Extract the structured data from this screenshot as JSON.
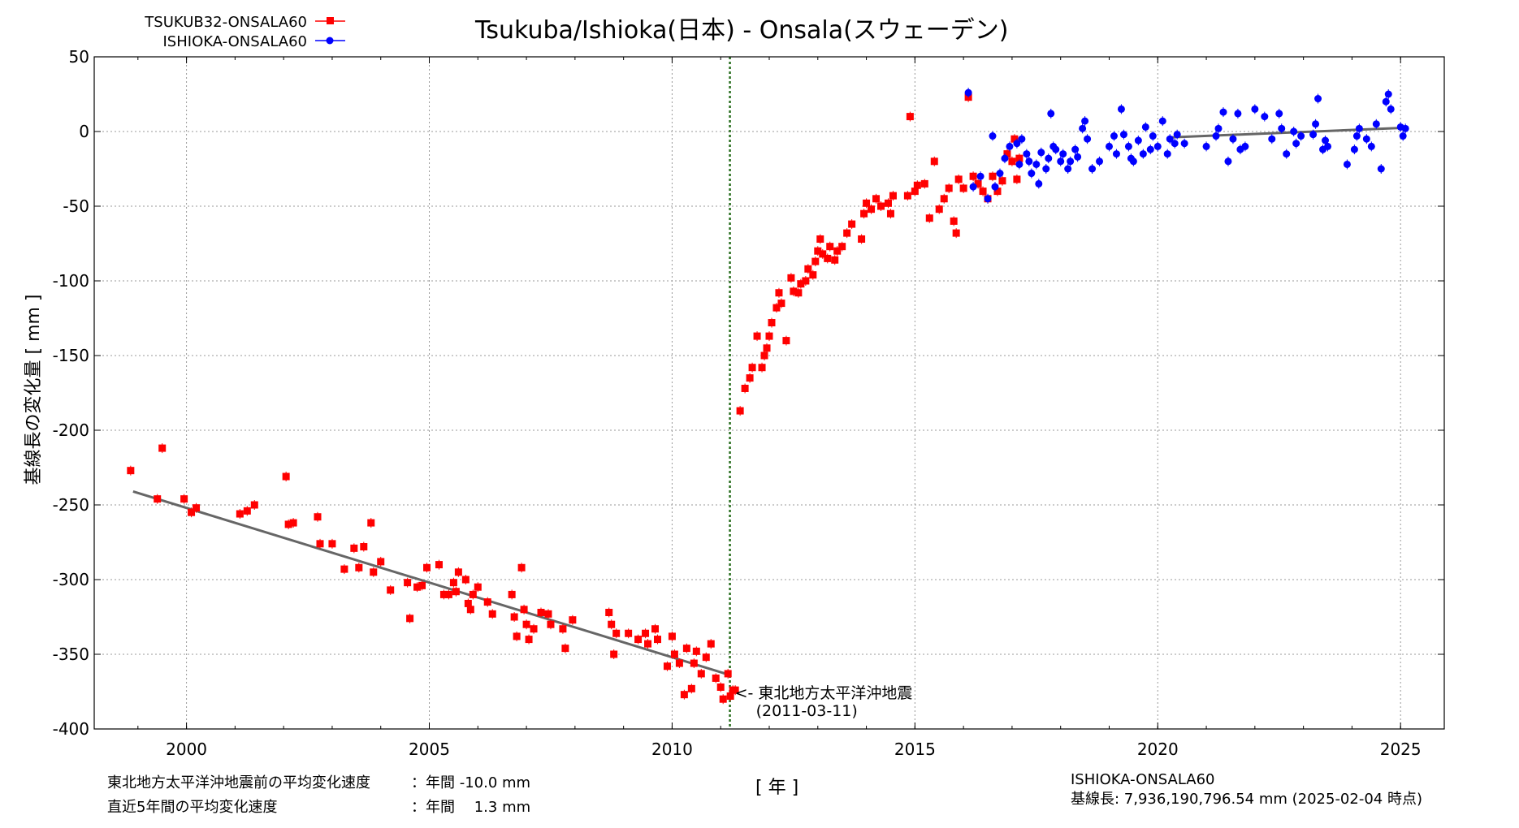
{
  "chart_data": {
    "type": "scatter",
    "title": "Tsukuba/Ishioka(日本) - Onsala(スウェーデン)",
    "xlabel": "[ 年 ]",
    "ylabel": "基線長の変化量 [ mm ]",
    "xlim": [
      1998.1,
      2025.9
    ],
    "ylim": [
      -400,
      50
    ],
    "xticks": [
      "2000",
      "2005",
      "2010",
      "2015",
      "2020",
      "2025"
    ],
    "yticks": [
      "50",
      "0",
      "-50",
      "-100",
      "-150",
      "-200",
      "-250",
      "-300",
      "-350",
      "-400"
    ],
    "grid": true,
    "legend_position": "top-left",
    "colors": {
      "red": "#ff0000",
      "blue": "#0000ff",
      "fit": "#666666",
      "earthquake": "#2a6f1f"
    },
    "series": [
      {
        "name": "TSUKUB32-ONSALA60",
        "marker": "square",
        "color": "#ff0000",
        "points": [
          [
            1998.85,
            -227
          ],
          [
            1999.4,
            -246
          ],
          [
            1999.5,
            -212
          ],
          [
            1999.95,
            -246
          ],
          [
            2000.1,
            -255
          ],
          [
            2000.2,
            -252
          ],
          [
            2001.1,
            -256
          ],
          [
            2001.25,
            -254
          ],
          [
            2001.4,
            -250
          ],
          [
            2002.05,
            -231
          ],
          [
            2002.1,
            -263
          ],
          [
            2002.2,
            -262
          ],
          [
            2002.7,
            -258
          ],
          [
            2002.75,
            -276
          ],
          [
            2003.0,
            -276
          ],
          [
            2003.25,
            -293
          ],
          [
            2003.45,
            -279
          ],
          [
            2003.55,
            -292
          ],
          [
            2003.65,
            -278
          ],
          [
            2003.8,
            -262
          ],
          [
            2003.85,
            -295
          ],
          [
            2004.0,
            -288
          ],
          [
            2004.2,
            -307
          ],
          [
            2004.55,
            -302
          ],
          [
            2004.6,
            -326
          ],
          [
            2004.75,
            -305
          ],
          [
            2004.85,
            -304
          ],
          [
            2004.95,
            -292
          ],
          [
            2005.2,
            -290
          ],
          [
            2005.3,
            -310
          ],
          [
            2005.4,
            -310
          ],
          [
            2005.5,
            -302
          ],
          [
            2005.55,
            -308
          ],
          [
            2005.6,
            -295
          ],
          [
            2005.75,
            -300
          ],
          [
            2005.8,
            -316
          ],
          [
            2005.85,
            -320
          ],
          [
            2005.9,
            -310
          ],
          [
            2006.0,
            -305
          ],
          [
            2006.2,
            -315
          ],
          [
            2006.3,
            -323
          ],
          [
            2006.7,
            -310
          ],
          [
            2006.75,
            -325
          ],
          [
            2006.8,
            -338
          ],
          [
            2006.9,
            -292
          ],
          [
            2006.95,
            -320
          ],
          [
            2007.0,
            -330
          ],
          [
            2007.05,
            -340
          ],
          [
            2007.15,
            -333
          ],
          [
            2007.3,
            -322
          ],
          [
            2007.45,
            -323
          ],
          [
            2007.5,
            -330
          ],
          [
            2007.75,
            -333
          ],
          [
            2007.8,
            -346
          ],
          [
            2007.95,
            -327
          ],
          [
            2008.7,
            -322
          ],
          [
            2008.75,
            -330
          ],
          [
            2008.8,
            -350
          ],
          [
            2008.85,
            -336
          ],
          [
            2009.1,
            -336
          ],
          [
            2009.3,
            -340
          ],
          [
            2009.45,
            -336
          ],
          [
            2009.5,
            -343
          ],
          [
            2009.65,
            -333
          ],
          [
            2009.7,
            -340
          ],
          [
            2009.9,
            -358
          ],
          [
            2010.0,
            -338
          ],
          [
            2010.05,
            -350
          ],
          [
            2010.15,
            -356
          ],
          [
            2010.25,
            -377
          ],
          [
            2010.3,
            -346
          ],
          [
            2010.4,
            -373
          ],
          [
            2010.45,
            -356
          ],
          [
            2010.5,
            -348
          ],
          [
            2010.6,
            -363
          ],
          [
            2010.7,
            -352
          ],
          [
            2010.8,
            -343
          ],
          [
            2010.9,
            -366
          ],
          [
            2011.0,
            -372
          ],
          [
            2011.05,
            -380
          ],
          [
            2011.15,
            -363
          ],
          [
            2011.2,
            -378
          ],
          [
            2011.25,
            -374
          ],
          [
            2011.3,
            -374
          ],
          [
            2011.4,
            -187
          ],
          [
            2011.5,
            -172
          ],
          [
            2011.6,
            -165
          ],
          [
            2011.65,
            -158
          ],
          [
            2011.75,
            -137
          ],
          [
            2011.85,
            -158
          ],
          [
            2011.9,
            -150
          ],
          [
            2011.95,
            -145
          ],
          [
            2012.0,
            -137
          ],
          [
            2012.05,
            -128
          ],
          [
            2012.15,
            -118
          ],
          [
            2012.2,
            -108
          ],
          [
            2012.25,
            -115
          ],
          [
            2012.35,
            -140
          ],
          [
            2012.45,
            -98
          ],
          [
            2012.5,
            -107
          ],
          [
            2012.6,
            -108
          ],
          [
            2012.65,
            -102
          ],
          [
            2012.75,
            -100
          ],
          [
            2012.8,
            -92
          ],
          [
            2012.9,
            -96
          ],
          [
            2012.95,
            -87
          ],
          [
            2013.0,
            -80
          ],
          [
            2013.05,
            -72
          ],
          [
            2013.1,
            -82
          ],
          [
            2013.2,
            -85
          ],
          [
            2013.25,
            -77
          ],
          [
            2013.35,
            -86
          ],
          [
            2013.4,
            -80
          ],
          [
            2013.5,
            -77
          ],
          [
            2013.6,
            -68
          ],
          [
            2013.7,
            -62
          ],
          [
            2013.9,
            -72
          ],
          [
            2013.95,
            -55
          ],
          [
            2014.0,
            -48
          ],
          [
            2014.1,
            -52
          ],
          [
            2014.2,
            -45
          ],
          [
            2014.3,
            -50
          ],
          [
            2014.45,
            -48
          ],
          [
            2014.5,
            -55
          ],
          [
            2014.55,
            -43
          ],
          [
            2014.85,
            -43
          ],
          [
            2014.9,
            10
          ],
          [
            2015.0,
            -40
          ],
          [
            2015.05,
            -36
          ],
          [
            2015.2,
            -35
          ],
          [
            2015.3,
            -58
          ],
          [
            2015.4,
            -20
          ],
          [
            2015.5,
            -52
          ],
          [
            2015.6,
            -45
          ],
          [
            2015.7,
            -38
          ],
          [
            2015.8,
            -60
          ],
          [
            2015.85,
            -68
          ],
          [
            2015.9,
            -32
          ],
          [
            2016.0,
            -38
          ],
          [
            2016.1,
            23
          ],
          [
            2016.2,
            -30
          ],
          [
            2016.3,
            -35
          ],
          [
            2016.4,
            -40
          ],
          [
            2016.5,
            -45
          ],
          [
            2016.6,
            -30
          ],
          [
            2016.7,
            -40
          ],
          [
            2016.8,
            -33
          ],
          [
            2016.9,
            -15
          ],
          [
            2017.0,
            -20
          ],
          [
            2017.05,
            -5
          ],
          [
            2017.1,
            -32
          ],
          [
            2017.15,
            -18
          ]
        ]
      },
      {
        "name": "ISHIOKA-ONSALA60",
        "marker": "circle",
        "color": "#0000ff",
        "points": [
          [
            2016.1,
            26
          ],
          [
            2016.2,
            -37
          ],
          [
            2016.35,
            -30
          ],
          [
            2016.5,
            -45
          ],
          [
            2016.6,
            -3
          ],
          [
            2016.65,
            -37
          ],
          [
            2016.75,
            -28
          ],
          [
            2016.85,
            -18
          ],
          [
            2016.95,
            -10
          ],
          [
            2017.1,
            -8
          ],
          [
            2017.15,
            -22
          ],
          [
            2017.2,
            -5
          ],
          [
            2017.3,
            -15
          ],
          [
            2017.35,
            -20
          ],
          [
            2017.4,
            -28
          ],
          [
            2017.5,
            -22
          ],
          [
            2017.55,
            -35
          ],
          [
            2017.6,
            -14
          ],
          [
            2017.7,
            -25
          ],
          [
            2017.75,
            -18
          ],
          [
            2017.8,
            12
          ],
          [
            2017.85,
            -10
          ],
          [
            2017.9,
            -12
          ],
          [
            2018.0,
            -20
          ],
          [
            2018.05,
            -15
          ],
          [
            2018.15,
            -25
          ],
          [
            2018.2,
            -20
          ],
          [
            2018.3,
            -12
          ],
          [
            2018.35,
            -17
          ],
          [
            2018.45,
            2
          ],
          [
            2018.5,
            7
          ],
          [
            2018.55,
            -5
          ],
          [
            2018.65,
            -25
          ],
          [
            2018.8,
            -20
          ],
          [
            2019.0,
            -10
          ],
          [
            2019.1,
            -3
          ],
          [
            2019.15,
            -15
          ],
          [
            2019.25,
            15
          ],
          [
            2019.3,
            -2
          ],
          [
            2019.4,
            -10
          ],
          [
            2019.45,
            -18
          ],
          [
            2019.5,
            -20
          ],
          [
            2019.6,
            -6
          ],
          [
            2019.7,
            -15
          ],
          [
            2019.75,
            3
          ],
          [
            2019.85,
            -12
          ],
          [
            2019.9,
            -3
          ],
          [
            2020.0,
            -10
          ],
          [
            2020.1,
            7
          ],
          [
            2020.2,
            -15
          ],
          [
            2020.25,
            -5
          ],
          [
            2020.35,
            -8
          ],
          [
            2020.4,
            -2
          ],
          [
            2020.55,
            -8
          ],
          [
            2021.0,
            -10
          ],
          [
            2021.2,
            -3
          ],
          [
            2021.25,
            2
          ],
          [
            2021.35,
            13
          ],
          [
            2021.45,
            -20
          ],
          [
            2021.55,
            -5
          ],
          [
            2021.65,
            12
          ],
          [
            2021.7,
            -12
          ],
          [
            2021.8,
            -10
          ],
          [
            2022.0,
            15
          ],
          [
            2022.2,
            10
          ],
          [
            2022.35,
            -5
          ],
          [
            2022.5,
            12
          ],
          [
            2022.55,
            2
          ],
          [
            2022.65,
            -15
          ],
          [
            2022.8,
            0
          ],
          [
            2022.85,
            -8
          ],
          [
            2022.95,
            -3
          ],
          [
            2023.2,
            -2
          ],
          [
            2023.25,
            5
          ],
          [
            2023.3,
            22
          ],
          [
            2023.4,
            -12
          ],
          [
            2023.45,
            -6
          ],
          [
            2023.5,
            -10
          ],
          [
            2023.9,
            -22
          ],
          [
            2024.05,
            -12
          ],
          [
            2024.1,
            -3
          ],
          [
            2024.15,
            2
          ],
          [
            2024.3,
            -5
          ],
          [
            2024.4,
            -10
          ],
          [
            2024.5,
            5
          ],
          [
            2024.6,
            -25
          ],
          [
            2024.7,
            20
          ],
          [
            2024.75,
            25
          ],
          [
            2024.8,
            15
          ],
          [
            2025.0,
            3
          ],
          [
            2025.05,
            -3
          ],
          [
            2025.1,
            2
          ]
        ]
      }
    ],
    "fit_lines": [
      {
        "x": [
          1998.9,
          2011.2
        ],
        "y": [
          -241,
          -364
        ]
      },
      {
        "x": [
          2020.2,
          2025.1
        ],
        "y": [
          -4,
          2.5
        ]
      }
    ],
    "earthquake_x": 2011.19,
    "earthquake_label_1": "<- 東北地方太平洋沖地震",
    "earthquake_label_2": "(2011-03-11)"
  },
  "notes": {
    "rate_before_label": "東北地方太平洋沖地震前の平均変化速度",
    "rate_before_value": "：年間 -10.0 mm",
    "rate_recent_label": "直近5年間の平均変化速度",
    "rate_recent_value": "：年間　 1.3 mm",
    "baseline_name": "ISHIOKA-ONSALA60",
    "baseline_length": "基線長: 7,936,190,796.54 mm (2025-02-04 時点)"
  }
}
